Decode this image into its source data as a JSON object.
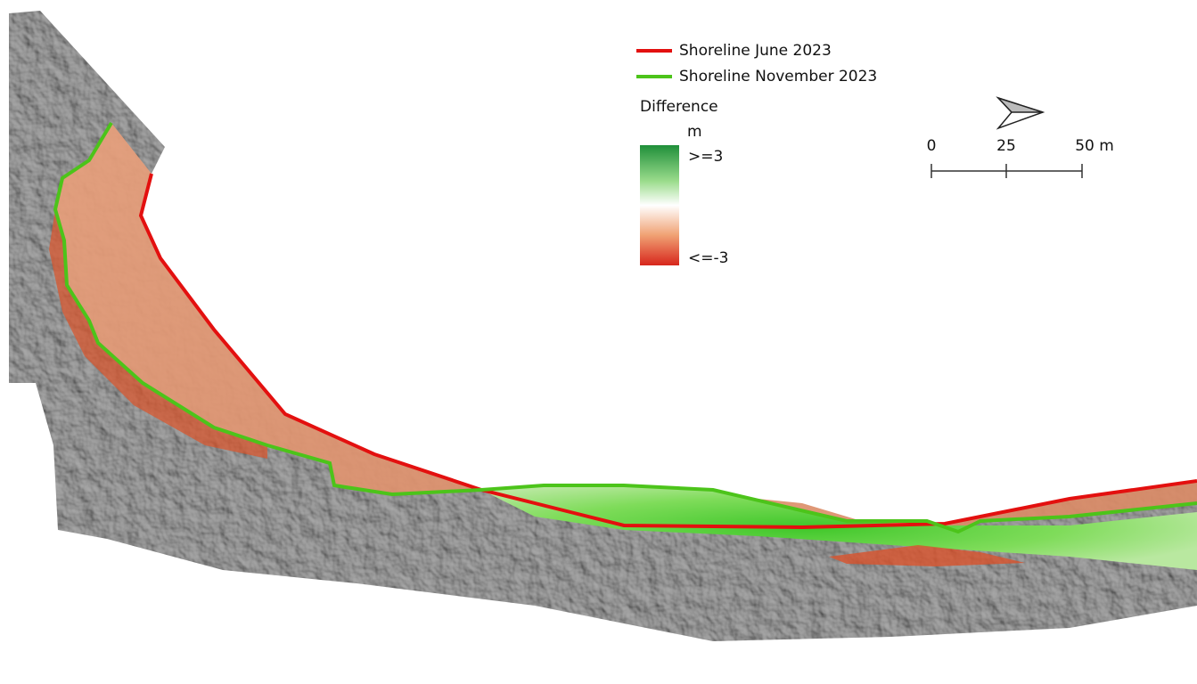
{
  "legend": {
    "items": [
      {
        "label": "Shoreline June 2023",
        "color": "#e3100f"
      },
      {
        "label": "Shoreline November 2023",
        "color": "#4cc41a"
      }
    ],
    "difference": {
      "title": "Difference",
      "unit": "m",
      "max_label": ">=3",
      "min_label": "<=-3"
    }
  },
  "scale_bar": {
    "labels": [
      "0",
      "25",
      "50 m"
    ]
  }
}
